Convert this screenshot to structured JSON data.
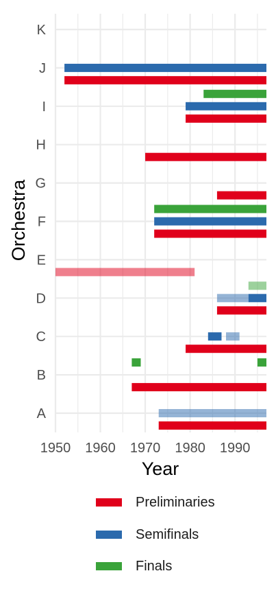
{
  "chart_data": {
    "type": "timeline",
    "xlabel": "Year",
    "ylabel": "Orchestra",
    "xlim": [
      1950,
      1997
    ],
    "xticks": [
      1950,
      1960,
      1970,
      1980,
      1990
    ],
    "orchestras": [
      "A",
      "B",
      "C",
      "D",
      "E",
      "F",
      "G",
      "H",
      "I",
      "J",
      "K"
    ],
    "series": [
      {
        "name": "Preliminaries",
        "color": "#e0001b"
      },
      {
        "name": "Semifinals",
        "color": "#2b6aad"
      },
      {
        "name": "Finals",
        "color": "#3aa33a"
      }
    ],
    "bars": [
      {
        "orchestra": "A",
        "series": "Preliminaries",
        "start": 1973,
        "end": 1997,
        "faded": false
      },
      {
        "orchestra": "A",
        "series": "Semifinals",
        "start": 1973,
        "end": 1997,
        "faded": true
      },
      {
        "orchestra": "B",
        "series": "Preliminaries",
        "start": 1967,
        "end": 1997,
        "faded": false
      },
      {
        "orchestra": "B",
        "series": "Finals",
        "start": 1967,
        "end": 1969,
        "faded": false
      },
      {
        "orchestra": "B",
        "series": "Finals",
        "start": 1995,
        "end": 1997,
        "faded": false
      },
      {
        "orchestra": "C",
        "series": "Preliminaries",
        "start": 1979,
        "end": 1997,
        "faded": false
      },
      {
        "orchestra": "C",
        "series": "Semifinals",
        "start": 1984,
        "end": 1987,
        "faded": false
      },
      {
        "orchestra": "C",
        "series": "Semifinals",
        "start": 1988,
        "end": 1991,
        "faded": true
      },
      {
        "orchestra": "D",
        "series": "Preliminaries",
        "start": 1986,
        "end": 1997,
        "faded": false
      },
      {
        "orchestra": "D",
        "series": "Semifinals",
        "start": 1986,
        "end": 1993,
        "faded": true
      },
      {
        "orchestra": "D",
        "series": "Semifinals",
        "start": 1993,
        "end": 1997,
        "faded": false
      },
      {
        "orchestra": "D",
        "series": "Finals",
        "start": 1993,
        "end": 1997,
        "faded": true
      },
      {
        "orchestra": "E",
        "series": "Preliminaries",
        "start": 1950,
        "end": 1981,
        "faded": true
      },
      {
        "orchestra": "F",
        "series": "Preliminaries",
        "start": 1972,
        "end": 1997,
        "faded": false
      },
      {
        "orchestra": "F",
        "series": "Semifinals",
        "start": 1972,
        "end": 1997,
        "faded": false
      },
      {
        "orchestra": "F",
        "series": "Finals",
        "start": 1972,
        "end": 1997,
        "faded": false
      },
      {
        "orchestra": "G",
        "series": "Preliminaries",
        "start": 1986,
        "end": 1997,
        "faded": false
      },
      {
        "orchestra": "H",
        "series": "Preliminaries",
        "start": 1970,
        "end": 1997,
        "faded": false
      },
      {
        "orchestra": "I",
        "series": "Preliminaries",
        "start": 1979,
        "end": 1997,
        "faded": false
      },
      {
        "orchestra": "I",
        "series": "Semifinals",
        "start": 1979,
        "end": 1997,
        "faded": false
      },
      {
        "orchestra": "I",
        "series": "Finals",
        "start": 1983,
        "end": 1997,
        "faded": false
      },
      {
        "orchestra": "J",
        "series": "Preliminaries",
        "start": 1952,
        "end": 1997,
        "faded": false
      },
      {
        "orchestra": "J",
        "series": "Semifinals",
        "start": 1952,
        "end": 1997,
        "faded": false
      }
    ]
  }
}
